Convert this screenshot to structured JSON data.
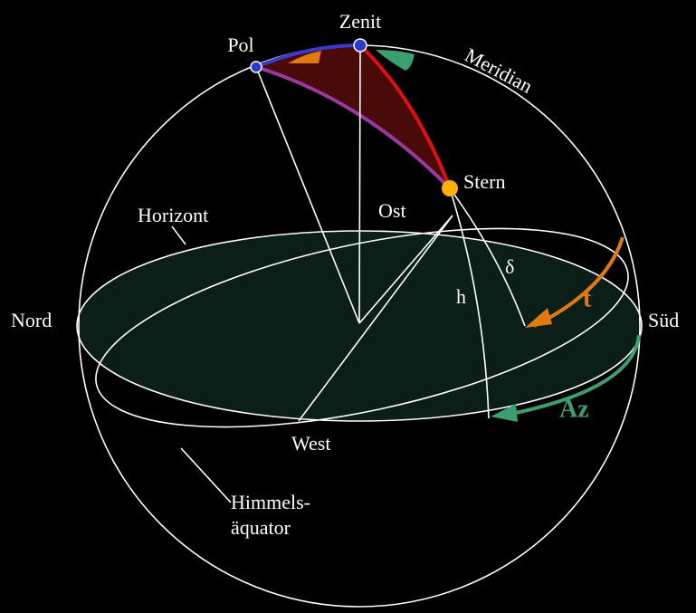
{
  "labels": {
    "zenith": "Zenit",
    "pole": "Pol",
    "meridian": "Meridian",
    "star": "Stern",
    "horizon": "Horizont",
    "east": "Ost",
    "declination": "δ",
    "altitude": "h",
    "hour_angle": "t",
    "north": "Nord",
    "south": "Süd",
    "azimuth": "Az",
    "west": "West",
    "equator_line1": "Himmels-",
    "equator_line2": "äquator"
  }
}
